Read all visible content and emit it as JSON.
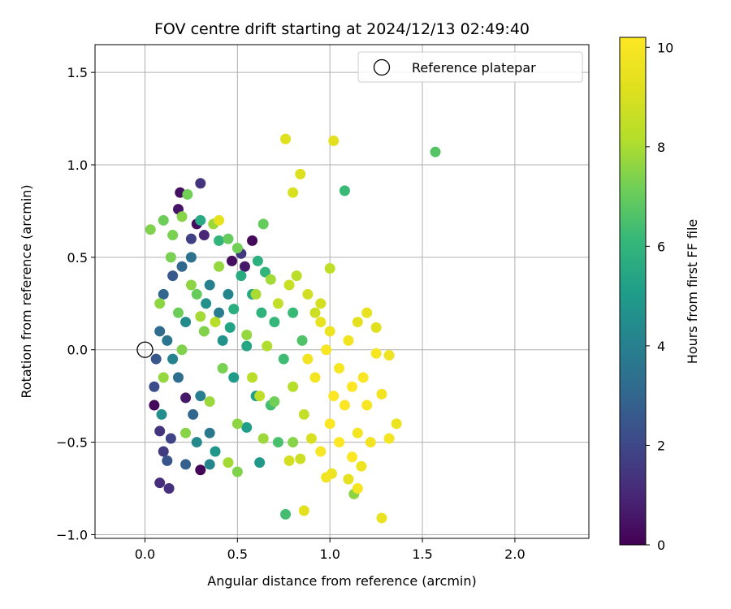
{
  "chart_data": {
    "type": "scatter",
    "title": "FOV centre drift starting at 2024/12/13 02:49:40",
    "xlabel": "Angular distance from reference (arcmin)",
    "ylabel": "Rotation from reference (arcmin)",
    "xlim": [
      -0.27,
      2.4
    ],
    "ylim": [
      -1.02,
      1.65
    ],
    "xticks": [
      0.0,
      0.5,
      1.0,
      1.5,
      2.0
    ],
    "xtick_labels": [
      "0.0",
      "0.5",
      "1.0",
      "1.5",
      "2.0"
    ],
    "yticks": [
      -1.0,
      -0.5,
      0.0,
      0.5,
      1.0,
      1.5
    ],
    "ytick_labels": [
      "−1.0",
      "−0.5",
      "0.0",
      "0.5",
      "1.0",
      "1.5"
    ],
    "grid": true,
    "legend": {
      "placement": "top-right",
      "entries": [
        {
          "label": "Reference platepar",
          "marker": "open-circle"
        }
      ]
    },
    "reference_point": {
      "x": 0.0,
      "y": 0.0,
      "label": "Reference platepar"
    },
    "colorbar": {
      "label": "Hours from first FF file",
      "min": 0,
      "max": 10.2,
      "ticks": [
        0,
        2,
        4,
        6,
        8,
        10
      ],
      "tick_labels": [
        "0",
        "2",
        "4",
        "6",
        "8",
        "10"
      ],
      "colormap": "viridis"
    },
    "series": [
      {
        "note_color_by": "hours",
        "points": [
          [
            0.05,
            -0.3,
            0.2
          ],
          [
            0.08,
            -0.72,
            1.2
          ],
          [
            0.13,
            -0.75,
            1.3
          ],
          [
            0.19,
            0.85,
            0.4
          ],
          [
            0.3,
            0.9,
            1.4
          ],
          [
            0.22,
            -0.26,
            0.6
          ],
          [
            0.3,
            -0.65,
            0.1
          ],
          [
            0.18,
            0.76,
            0.5
          ],
          [
            0.28,
            0.68,
            0.3
          ],
          [
            0.32,
            0.62,
            1.0
          ],
          [
            0.58,
            0.59,
            0.2
          ],
          [
            0.52,
            0.52,
            1.5
          ],
          [
            0.54,
            0.45,
            0.6
          ],
          [
            0.47,
            0.48,
            0.3
          ],
          [
            0.25,
            0.6,
            1.8
          ],
          [
            0.08,
            -0.44,
            1.4
          ],
          [
            0.05,
            -0.2,
            2.2
          ],
          [
            0.1,
            -0.55,
            1.6
          ],
          [
            0.14,
            -0.48,
            1.9
          ],
          [
            0.06,
            -0.05,
            2.5
          ],
          [
            0.12,
            -0.6,
            2.4
          ],
          [
            0.22,
            -0.62,
            2.8
          ],
          [
            0.15,
            0.4,
            2.6
          ],
          [
            0.1,
            0.3,
            3.0
          ],
          [
            0.2,
            0.45,
            3.1
          ],
          [
            0.25,
            0.5,
            3.4
          ],
          [
            0.08,
            0.1,
            3.2
          ],
          [
            0.12,
            0.05,
            3.6
          ],
          [
            0.18,
            -0.15,
            3.3
          ],
          [
            0.26,
            -0.35,
            3.0
          ],
          [
            0.35,
            -0.45,
            3.7
          ],
          [
            0.3,
            -0.25,
            3.9
          ],
          [
            0.4,
            0.2,
            3.8
          ],
          [
            0.35,
            0.35,
            4.0
          ],
          [
            0.45,
            0.3,
            4.2
          ],
          [
            0.22,
            0.15,
            4.4
          ],
          [
            0.15,
            -0.05,
            4.1
          ],
          [
            0.09,
            -0.35,
            4.5
          ],
          [
            0.28,
            -0.5,
            4.3
          ],
          [
            0.33,
            0.25,
            4.6
          ],
          [
            0.38,
            -0.55,
            4.8
          ],
          [
            0.42,
            0.05,
            4.7
          ],
          [
            0.48,
            -0.15,
            5.0
          ],
          [
            0.55,
            -0.42,
            5.1
          ],
          [
            0.62,
            -0.61,
            4.9
          ],
          [
            0.35,
            -0.62,
            4.2
          ],
          [
            0.46,
            0.12,
            5.3
          ],
          [
            0.52,
            0.4,
            5.6
          ],
          [
            0.61,
            0.48,
            5.8
          ],
          [
            0.58,
            0.3,
            5.5
          ],
          [
            0.65,
            0.42,
            6.0
          ],
          [
            0.63,
            0.2,
            5.9
          ],
          [
            0.55,
            0.02,
            5.4
          ],
          [
            0.48,
            0.22,
            5.7
          ],
          [
            0.7,
            0.15,
            6.1
          ],
          [
            0.6,
            -0.25,
            5.2
          ],
          [
            0.75,
            -0.05,
            6.3
          ],
          [
            0.8,
            0.2,
            6.2
          ],
          [
            0.68,
            -0.3,
            6.4
          ],
          [
            0.72,
            -0.5,
            6.5
          ],
          [
            0.85,
            0.05,
            6.6
          ],
          [
            0.3,
            0.7,
            5.5
          ],
          [
            0.4,
            0.59,
            6.0
          ],
          [
            0.23,
            0.84,
            7.2
          ],
          [
            0.64,
            0.68,
            7.0
          ],
          [
            0.76,
            -0.89,
            6.4
          ],
          [
            1.08,
            0.86,
            6.2
          ],
          [
            1.57,
            1.07,
            6.7
          ],
          [
            1.13,
            -0.78,
            7.6
          ],
          [
            0.03,
            0.65,
            7.4
          ],
          [
            0.1,
            0.7,
            7.1
          ],
          [
            0.2,
            0.72,
            7.5
          ],
          [
            0.15,
            0.62,
            7.3
          ],
          [
            0.37,
            0.68,
            7.8
          ],
          [
            0.45,
            0.6,
            7.0
          ],
          [
            0.5,
            0.55,
            7.2
          ],
          [
            0.25,
            0.35,
            7.6
          ],
          [
            0.3,
            0.18,
            7.9
          ],
          [
            0.2,
            0.0,
            7.4
          ],
          [
            0.1,
            -0.15,
            7.7
          ],
          [
            0.22,
            -0.45,
            7.5
          ],
          [
            0.35,
            -0.28,
            7.8
          ],
          [
            0.42,
            -0.1,
            7.3
          ],
          [
            0.5,
            -0.4,
            7.6
          ],
          [
            0.45,
            -0.61,
            7.9
          ],
          [
            0.5,
            -0.66,
            7.4
          ],
          [
            0.64,
            -0.48,
            7.8
          ],
          [
            0.7,
            -0.28,
            7.2
          ],
          [
            0.55,
            0.08,
            7.7
          ],
          [
            0.6,
            0.3,
            8.0
          ],
          [
            0.68,
            0.38,
            7.9
          ],
          [
            0.8,
            -0.5,
            7.5
          ],
          [
            0.28,
            0.3,
            7.0
          ],
          [
            0.18,
            0.2,
            7.1
          ],
          [
            0.08,
            0.25,
            7.6
          ],
          [
            0.32,
            0.1,
            7.4
          ],
          [
            0.4,
            0.45,
            7.7
          ],
          [
            0.14,
            0.5,
            7.3
          ],
          [
            0.38,
            0.15,
            8.2
          ],
          [
            0.58,
            -0.15,
            8.3
          ],
          [
            0.62,
            -0.25,
            8.4
          ],
          [
            0.66,
            0.02,
            8.1
          ],
          [
            0.72,
            0.25,
            8.5
          ],
          [
            0.78,
            0.35,
            8.6
          ],
          [
            0.82,
            0.4,
            8.3
          ],
          [
            0.88,
            0.3,
            8.8
          ],
          [
            0.92,
            0.2,
            8.7
          ],
          [
            0.95,
            0.25,
            8.9
          ],
          [
            0.8,
            -0.2,
            8.2
          ],
          [
            0.86,
            -0.35,
            8.5
          ],
          [
            0.84,
            -0.59,
            8.7
          ],
          [
            0.9,
            -0.48,
            9.0
          ],
          [
            0.76,
            1.14,
            9.2
          ],
          [
            1.02,
            1.13,
            9.3
          ],
          [
            0.84,
            0.95,
            9.1
          ],
          [
            0.8,
            0.85,
            9.0
          ],
          [
            0.4,
            0.7,
            9.4
          ],
          [
            1.0,
            0.44,
            8.4
          ],
          [
            1.25,
            0.12,
            9.2
          ],
          [
            1.15,
            0.15,
            9.3
          ],
          [
            1.28,
            -0.91,
            9.5
          ],
          [
            0.86,
            -0.87,
            9.3
          ],
          [
            1.01,
            -0.67,
            9.6
          ],
          [
            1.1,
            -0.7,
            9.4
          ],
          [
            0.78,
            -0.6,
            8.9
          ],
          [
            0.98,
            -0.69,
            9.8
          ],
          [
            1.15,
            -0.75,
            9.9
          ],
          [
            1.17,
            -0.63,
            9.7
          ],
          [
            1.28,
            -0.24,
            9.8
          ],
          [
            1.32,
            -0.48,
            9.9
          ],
          [
            1.36,
            -0.4,
            9.6
          ],
          [
            1.32,
            -0.03,
            9.7
          ],
          [
            1.2,
            0.2,
            9.5
          ],
          [
            1.1,
            0.05,
            9.8
          ],
          [
            1.05,
            -0.1,
            10.0
          ],
          [
            1.08,
            -0.3,
            10.1
          ],
          [
            1.15,
            -0.45,
            9.9
          ],
          [
            1.2,
            -0.3,
            10.0
          ],
          [
            1.22,
            -0.5,
            9.8
          ],
          [
            1.12,
            -0.2,
            10.2
          ],
          [
            1.0,
            -0.4,
            10.1
          ],
          [
            0.95,
            -0.55,
            10.0
          ],
          [
            1.05,
            -0.5,
            10.2
          ],
          [
            0.92,
            -0.15,
            9.9
          ],
          [
            0.98,
            0.0,
            10.0
          ],
          [
            1.02,
            -0.25,
            10.1
          ],
          [
            0.88,
            -0.05,
            9.8
          ],
          [
            1.12,
            -0.58,
            10.2
          ],
          [
            1.25,
            -0.02,
            10.0
          ],
          [
            1.18,
            -0.15,
            10.1
          ],
          [
            0.95,
            0.15,
            9.5
          ],
          [
            1.0,
            0.1,
            9.6
          ]
        ]
      }
    ]
  }
}
